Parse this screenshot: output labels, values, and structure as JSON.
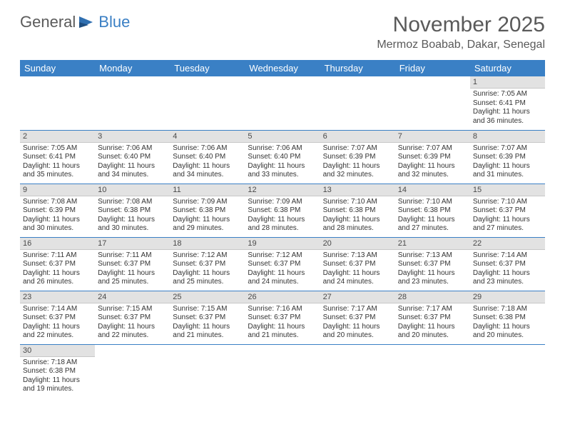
{
  "logo": {
    "text1": "General",
    "text2": "Blue"
  },
  "title": "November 2025",
  "location": "Mermoz Boabab, Dakar, Senegal",
  "colors": {
    "header_bg": "#3a80c5",
    "header_text": "#ffffff",
    "daynum_bg": "#e2e2e2",
    "border": "#3a80c5",
    "text": "#333333",
    "title_text": "#5a5a5a"
  },
  "day_headers": [
    "Sunday",
    "Monday",
    "Tuesday",
    "Wednesday",
    "Thursday",
    "Friday",
    "Saturday"
  ],
  "weeks": [
    [
      null,
      null,
      null,
      null,
      null,
      null,
      {
        "n": "1",
        "sr": "7:05 AM",
        "ss": "6:41 PM",
        "dl": "11 hours and 36 minutes."
      }
    ],
    [
      {
        "n": "2",
        "sr": "7:05 AM",
        "ss": "6:41 PM",
        "dl": "11 hours and 35 minutes."
      },
      {
        "n": "3",
        "sr": "7:06 AM",
        "ss": "6:40 PM",
        "dl": "11 hours and 34 minutes."
      },
      {
        "n": "4",
        "sr": "7:06 AM",
        "ss": "6:40 PM",
        "dl": "11 hours and 34 minutes."
      },
      {
        "n": "5",
        "sr": "7:06 AM",
        "ss": "6:40 PM",
        "dl": "11 hours and 33 minutes."
      },
      {
        "n": "6",
        "sr": "7:07 AM",
        "ss": "6:39 PM",
        "dl": "11 hours and 32 minutes."
      },
      {
        "n": "7",
        "sr": "7:07 AM",
        "ss": "6:39 PM",
        "dl": "11 hours and 32 minutes."
      },
      {
        "n": "8",
        "sr": "7:07 AM",
        "ss": "6:39 PM",
        "dl": "11 hours and 31 minutes."
      }
    ],
    [
      {
        "n": "9",
        "sr": "7:08 AM",
        "ss": "6:39 PM",
        "dl": "11 hours and 30 minutes."
      },
      {
        "n": "10",
        "sr": "7:08 AM",
        "ss": "6:38 PM",
        "dl": "11 hours and 30 minutes."
      },
      {
        "n": "11",
        "sr": "7:09 AM",
        "ss": "6:38 PM",
        "dl": "11 hours and 29 minutes."
      },
      {
        "n": "12",
        "sr": "7:09 AM",
        "ss": "6:38 PM",
        "dl": "11 hours and 28 minutes."
      },
      {
        "n": "13",
        "sr": "7:10 AM",
        "ss": "6:38 PM",
        "dl": "11 hours and 28 minutes."
      },
      {
        "n": "14",
        "sr": "7:10 AM",
        "ss": "6:38 PM",
        "dl": "11 hours and 27 minutes."
      },
      {
        "n": "15",
        "sr": "7:10 AM",
        "ss": "6:37 PM",
        "dl": "11 hours and 27 minutes."
      }
    ],
    [
      {
        "n": "16",
        "sr": "7:11 AM",
        "ss": "6:37 PM",
        "dl": "11 hours and 26 minutes."
      },
      {
        "n": "17",
        "sr": "7:11 AM",
        "ss": "6:37 PM",
        "dl": "11 hours and 25 minutes."
      },
      {
        "n": "18",
        "sr": "7:12 AM",
        "ss": "6:37 PM",
        "dl": "11 hours and 25 minutes."
      },
      {
        "n": "19",
        "sr": "7:12 AM",
        "ss": "6:37 PM",
        "dl": "11 hours and 24 minutes."
      },
      {
        "n": "20",
        "sr": "7:13 AM",
        "ss": "6:37 PM",
        "dl": "11 hours and 24 minutes."
      },
      {
        "n": "21",
        "sr": "7:13 AM",
        "ss": "6:37 PM",
        "dl": "11 hours and 23 minutes."
      },
      {
        "n": "22",
        "sr": "7:14 AM",
        "ss": "6:37 PM",
        "dl": "11 hours and 23 minutes."
      }
    ],
    [
      {
        "n": "23",
        "sr": "7:14 AM",
        "ss": "6:37 PM",
        "dl": "11 hours and 22 minutes."
      },
      {
        "n": "24",
        "sr": "7:15 AM",
        "ss": "6:37 PM",
        "dl": "11 hours and 22 minutes."
      },
      {
        "n": "25",
        "sr": "7:15 AM",
        "ss": "6:37 PM",
        "dl": "11 hours and 21 minutes."
      },
      {
        "n": "26",
        "sr": "7:16 AM",
        "ss": "6:37 PM",
        "dl": "11 hours and 21 minutes."
      },
      {
        "n": "27",
        "sr": "7:17 AM",
        "ss": "6:37 PM",
        "dl": "11 hours and 20 minutes."
      },
      {
        "n": "28",
        "sr": "7:17 AM",
        "ss": "6:37 PM",
        "dl": "11 hours and 20 minutes."
      },
      {
        "n": "29",
        "sr": "7:18 AM",
        "ss": "6:38 PM",
        "dl": "11 hours and 20 minutes."
      }
    ],
    [
      {
        "n": "30",
        "sr": "7:18 AM",
        "ss": "6:38 PM",
        "dl": "11 hours and 19 minutes."
      },
      null,
      null,
      null,
      null,
      null,
      null
    ]
  ],
  "labels": {
    "sunrise": "Sunrise: ",
    "sunset": "Sunset: ",
    "daylight": "Daylight: "
  }
}
